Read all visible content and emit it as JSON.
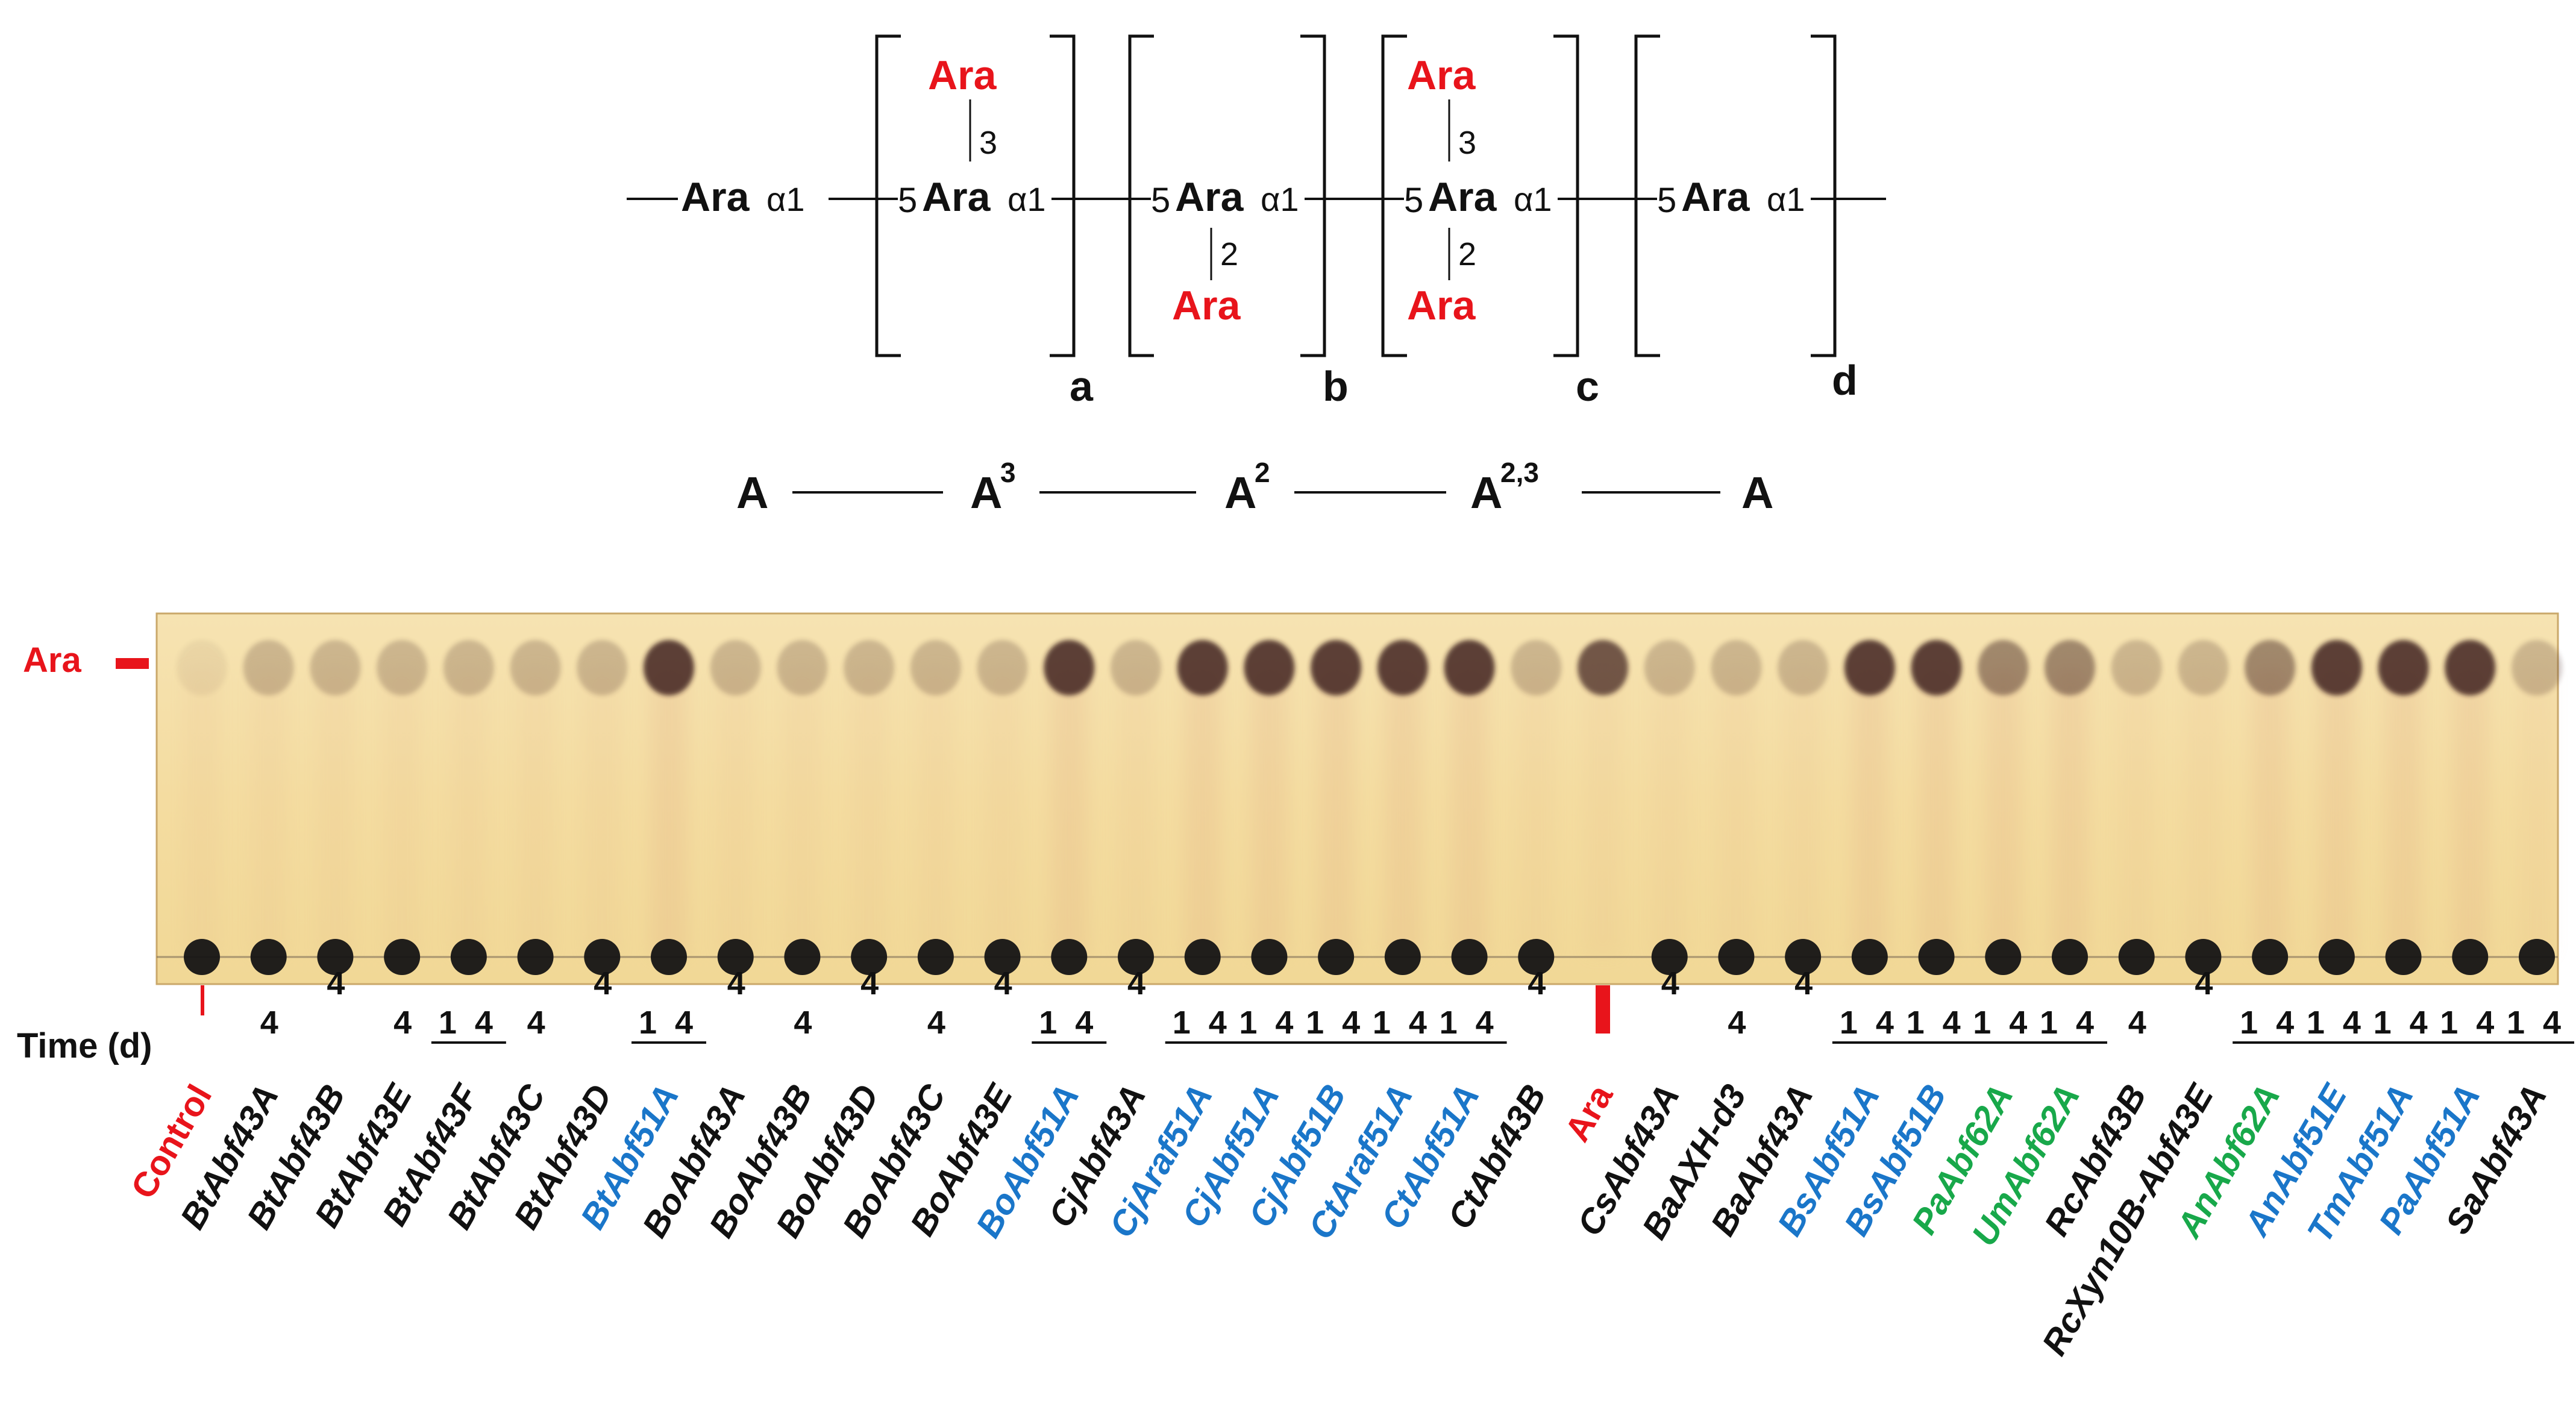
{
  "structure": {
    "ara_label": "Ara",
    "alpha1": "α1",
    "linkage_5": "5",
    "branch_3": "3",
    "branch_2": "2",
    "subscript_a": "a",
    "subscript_b": "b",
    "subscript_c": "c",
    "subscript_d": "d"
  },
  "shorthand": {
    "A": "A",
    "A3_sup": "3",
    "A2_sup": "2",
    "A23_sup": "2,3"
  },
  "tlc": {
    "ara_marker_label": "Ara",
    "time_label": "Time (d)",
    "time_values": {
      "one": "1",
      "four": "4"
    },
    "colors": {
      "red": "#e8141b",
      "blue": "#1a76c9",
      "green": "#18a84a",
      "black": "#111111",
      "plate": "#f3dfa9"
    },
    "lanes": [
      {
        "label": "Control",
        "color": "red",
        "italic": false,
        "time": "",
        "marker": "control"
      },
      {
        "label": "BtAbf43A",
        "color": "black",
        "italic": true,
        "time": "4"
      },
      {
        "label": "BtAbf43B",
        "color": "black",
        "italic": true,
        "time": "4"
      },
      {
        "label": "BtAbf43E",
        "color": "black",
        "italic": true,
        "time": "4"
      },
      {
        "label": "BtAbf43F",
        "color": "black",
        "italic": true,
        "time": "1 4"
      },
      {
        "label": "BtAbf43C",
        "color": "black",
        "italic": true,
        "time": "4"
      },
      {
        "label": "BtAbf43D",
        "color": "black",
        "italic": true,
        "time": "4"
      },
      {
        "label": "BtAbf51A",
        "color": "blue",
        "italic": true,
        "time": "1 4"
      },
      {
        "label": "BoAbf43A",
        "color": "black",
        "italic": true,
        "time": "4"
      },
      {
        "label": "BoAbf43B",
        "color": "black",
        "italic": true,
        "time": "4"
      },
      {
        "label": "BoAbf43D",
        "color": "black",
        "italic": true,
        "time": "4"
      },
      {
        "label": "BoAbf43C",
        "color": "black",
        "italic": true,
        "time": "4"
      },
      {
        "label": "BoAbf43E",
        "color": "black",
        "italic": true,
        "time": "4"
      },
      {
        "label": "BoAbf51A",
        "color": "blue",
        "italic": true,
        "time": "1 4"
      },
      {
        "label": "CjAbf43A",
        "color": "black",
        "italic": true,
        "time": "4"
      },
      {
        "label": "CjAraf51A",
        "color": "blue",
        "italic": true,
        "time": "1 4"
      },
      {
        "label": "CjAbf51A",
        "color": "blue",
        "italic": true,
        "time": "1 4"
      },
      {
        "label": "CjAbf51B",
        "color": "blue",
        "italic": true,
        "time": "1 4"
      },
      {
        "label": "CtAraf51A",
        "color": "blue",
        "italic": true,
        "time": "1 4"
      },
      {
        "label": "CtAbf51A",
        "color": "blue",
        "italic": true,
        "time": "1 4"
      },
      {
        "label": "CtAbf43B",
        "color": "black",
        "italic": true,
        "time": "4"
      },
      {
        "label": "Ara",
        "color": "red",
        "italic": false,
        "time": "",
        "marker": "ara"
      },
      {
        "label": "CsAbf43A",
        "color": "black",
        "italic": true,
        "time": "4"
      },
      {
        "label": "BaAXH-d3",
        "color": "black",
        "italic": true,
        "time": "4"
      },
      {
        "label": "BaAbf43A",
        "color": "black",
        "italic": true,
        "time": "4"
      },
      {
        "label": "BsAbf51A",
        "color": "blue",
        "italic": true,
        "time": "1 4"
      },
      {
        "label": "BsAbf51B",
        "color": "blue",
        "italic": true,
        "time": "1 4"
      },
      {
        "label": "PaAbf62A",
        "color": "green",
        "italic": true,
        "time": "1 4"
      },
      {
        "label": "UmAbf62A",
        "color": "green",
        "italic": true,
        "time": "1 4"
      },
      {
        "label": "RcAbf43B",
        "color": "black",
        "italic": true,
        "time": "4"
      },
      {
        "label": "RcXyn10B-Abf43E",
        "color": "black",
        "italic": true,
        "time": "4"
      },
      {
        "label": "AnAbf62A",
        "color": "green",
        "italic": true,
        "time": "1 4"
      },
      {
        "label": "AnAbf51E",
        "color": "blue",
        "italic": true,
        "time": "1 4"
      },
      {
        "label": "TmAbf51A",
        "color": "blue",
        "italic": true,
        "time": "1 4"
      },
      {
        "label": "PaAbf51A",
        "color": "blue",
        "italic": true,
        "time": "1 4"
      },
      {
        "label": "SaAbf43A",
        "color": "black",
        "italic": true,
        "time": "1 4"
      }
    ]
  }
}
